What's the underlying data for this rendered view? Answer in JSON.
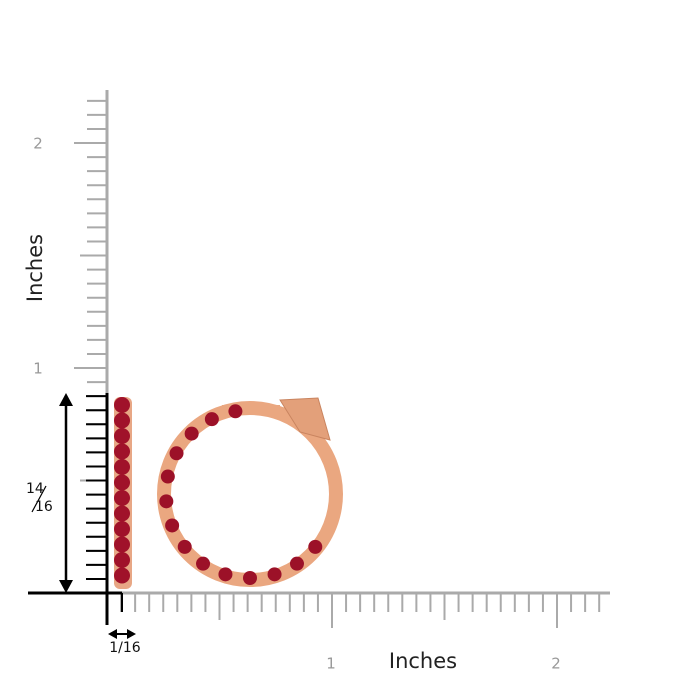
{
  "y_axis": {
    "label": "Inches",
    "tick_labels": [
      "2",
      "1"
    ]
  },
  "x_axis": {
    "label": "Inches",
    "tick_labels": [
      "1",
      "2"
    ]
  },
  "height_dimension": {
    "numerator": "14",
    "denominator": "16"
  },
  "width_dimension": "1/16"
}
